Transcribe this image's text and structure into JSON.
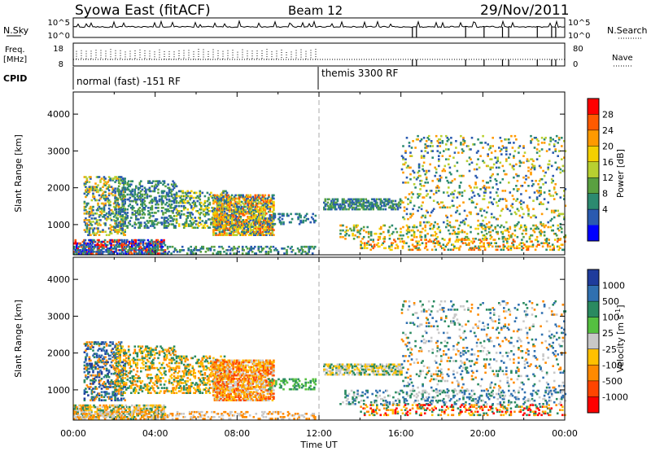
{
  "header": {
    "station": "Syowa East (fitACF)",
    "beam": "Beam 12",
    "date": "29/Nov/2011"
  },
  "strips": {
    "nsky_label": "N.Sky",
    "nsky_ticks": [
      "10^5",
      "10^0"
    ],
    "nsearch_label": "N.Search",
    "nsearch_ticks": [
      "10^5",
      "10^0"
    ],
    "freq_label": "Freq.",
    "freq_unit": "[MHz]",
    "freq_ticks": [
      "18",
      "8"
    ],
    "nave_label": "Nave",
    "nave_ticks": [
      "80",
      "0"
    ],
    "cpid_label": "CPID",
    "cpid_segments": [
      {
        "text": "normal (fast) -151 RF",
        "start_hour": 0
      },
      {
        "text": "themis 3300 RF",
        "start_hour": 12
      }
    ]
  },
  "chart_data": [
    {
      "type": "heatmap",
      "title": "",
      "xlabel": "",
      "ylabel": "Slant Range [km]",
      "xlim_hours": [
        0,
        24
      ],
      "ylim": [
        180,
        4600
      ],
      "yticks": [
        "1000",
        "2000",
        "3000",
        "4000"
      ],
      "colorbar": {
        "label": "Power [dB]",
        "ticks": [
          "28",
          "24",
          "20",
          "16",
          "12",
          "8",
          "4"
        ],
        "colors": [
          "#ff0000",
          "#ff5a00",
          "#ff9a00",
          "#f4d000",
          "#b8d030",
          "#5aa040",
          "#2c8a70",
          "#2a5ab0",
          "#0000ff"
        ]
      },
      "mode_change_hour": 12
    },
    {
      "type": "heatmap",
      "title": "",
      "xlabel": "Time UT",
      "ylabel": "Slant Range [km]",
      "xlim_hours": [
        0,
        24
      ],
      "ylim": [
        180,
        4600
      ],
      "yticks": [
        "1000",
        "2000",
        "3000",
        "4000"
      ],
      "xticks": [
        "00:00",
        "04:00",
        "08:00",
        "12:00",
        "16:00",
        "20:00",
        "00:00"
      ],
      "colorbar": {
        "label": "Velocity [m s",
        "label_sup": "-1",
        "label_end": "]",
        "ticks": [
          "1000",
          "500",
          "100",
          "25",
          "-25",
          "-100",
          "-500",
          "-1000"
        ],
        "colors": [
          "#1f3c9c",
          "#3070b0",
          "#2a8a60",
          "#55c040",
          "#c8c8c8",
          "#ffc000",
          "#ff8a00",
          "#ff4500",
          "#ff0000"
        ]
      },
      "mode_change_hour": 12
    }
  ]
}
